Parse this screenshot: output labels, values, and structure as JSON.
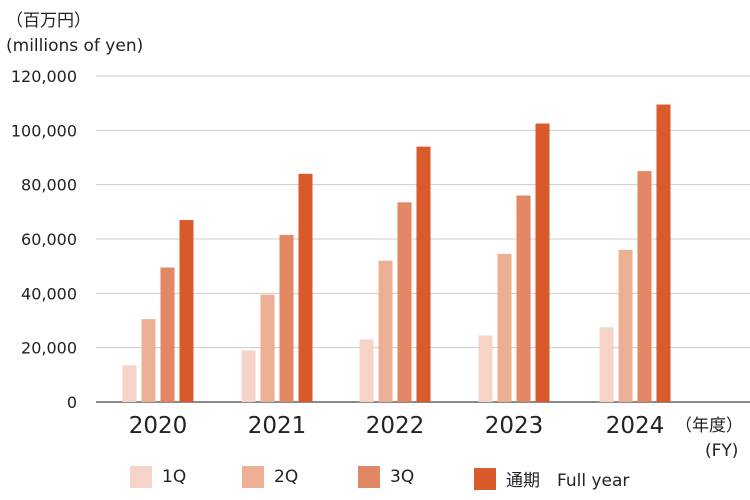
{
  "chart_data": {
    "type": "bar",
    "unit_label_ja": "（百万円）",
    "unit_label_en": "(millions of yen)",
    "x_suffix_ja": "（年度）",
    "x_suffix_en": "(FY)",
    "categories": [
      "2020",
      "2021",
      "2022",
      "2023",
      "2024"
    ],
    "ylim": [
      0,
      120000
    ],
    "yticks": [
      0,
      20000,
      40000,
      60000,
      80000,
      100000,
      120000
    ],
    "ytick_labels": [
      "0",
      "20,000",
      "40,000",
      "60,000",
      "80,000",
      "100,000",
      "120,000"
    ],
    "grid": true,
    "legend_position": "bottom",
    "series": [
      {
        "name": "1Q",
        "color": "#f5d3c7",
        "values": [
          13500,
          19000,
          23000,
          24500,
          27500
        ]
      },
      {
        "name": "2Q",
        "color": "#ecaf93",
        "values": [
          30500,
          39500,
          52000,
          54500,
          56000
        ]
      },
      {
        "name": "3Q",
        "color": "#e18763",
        "values": [
          49500,
          61500,
          73500,
          76000,
          85000
        ]
      },
      {
        "name": "通期　Full year",
        "color": "#d95a2b",
        "values": [
          67000,
          84000,
          94000,
          102500,
          109500
        ]
      }
    ]
  }
}
